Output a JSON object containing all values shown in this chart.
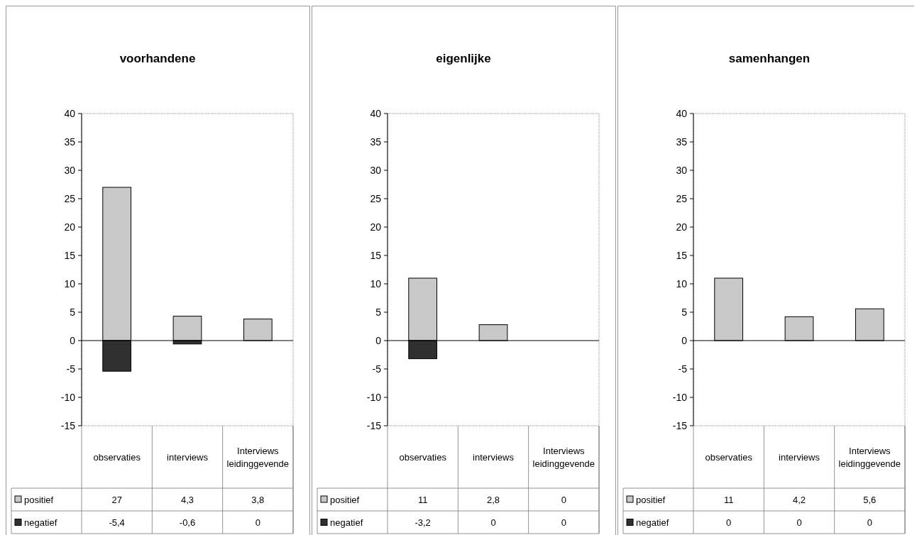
{
  "chart_data": [
    {
      "type": "bar",
      "title": "voorhandene",
      "categories": [
        "observaties",
        "interviews",
        "Interviews leidinggevende"
      ],
      "stacked": true,
      "ylim": [
        -15,
        40
      ],
      "yticks": [
        -15,
        -10,
        -5,
        0,
        5,
        10,
        15,
        20,
        25,
        30,
        35,
        40
      ],
      "legend": "bottom left",
      "series": [
        {
          "name": "positief",
          "color": "#c8c8c8",
          "values": [
            27,
            4.3,
            3.8
          ],
          "value_labels": [
            "27",
            "4,3",
            "3,8"
          ]
        },
        {
          "name": "negatief",
          "color": "#303030",
          "values": [
            -5.4,
            -0.6,
            0
          ],
          "value_labels": [
            "-5,4",
            "-0,6",
            "0"
          ]
        }
      ]
    },
    {
      "type": "bar",
      "title": "eigenlijke",
      "categories": [
        "observaties",
        "interviews",
        "Interviews leidinggevende"
      ],
      "stacked": true,
      "ylim": [
        -15,
        40
      ],
      "yticks": [
        -15,
        -10,
        -5,
        0,
        5,
        10,
        15,
        20,
        25,
        30,
        35,
        40
      ],
      "legend": "bottom left",
      "series": [
        {
          "name": "positief",
          "color": "#c8c8c8",
          "values": [
            11,
            2.8,
            0
          ],
          "value_labels": [
            "11",
            "2,8",
            "0"
          ]
        },
        {
          "name": "negatief",
          "color": "#303030",
          "values": [
            -3.2,
            0,
            0
          ],
          "value_labels": [
            "-3,2",
            "0",
            "0"
          ]
        }
      ]
    },
    {
      "type": "bar",
      "title": "samenhangen",
      "categories": [
        "observaties",
        "interviews",
        "Interviews leidinggevende"
      ],
      "stacked": true,
      "ylim": [
        -15,
        40
      ],
      "yticks": [
        -15,
        -10,
        -5,
        0,
        5,
        10,
        15,
        20,
        25,
        30,
        35,
        40
      ],
      "legend": "bottom left",
      "series": [
        {
          "name": "positief",
          "color": "#c8c8c8",
          "values": [
            11,
            4.2,
            5.6
          ],
          "value_labels": [
            "11",
            "4,2",
            "5,6"
          ]
        },
        {
          "name": "negatief",
          "color": "#303030",
          "values": [
            0,
            0,
            0
          ],
          "value_labels": [
            "0",
            "0",
            "0"
          ]
        }
      ]
    }
  ]
}
